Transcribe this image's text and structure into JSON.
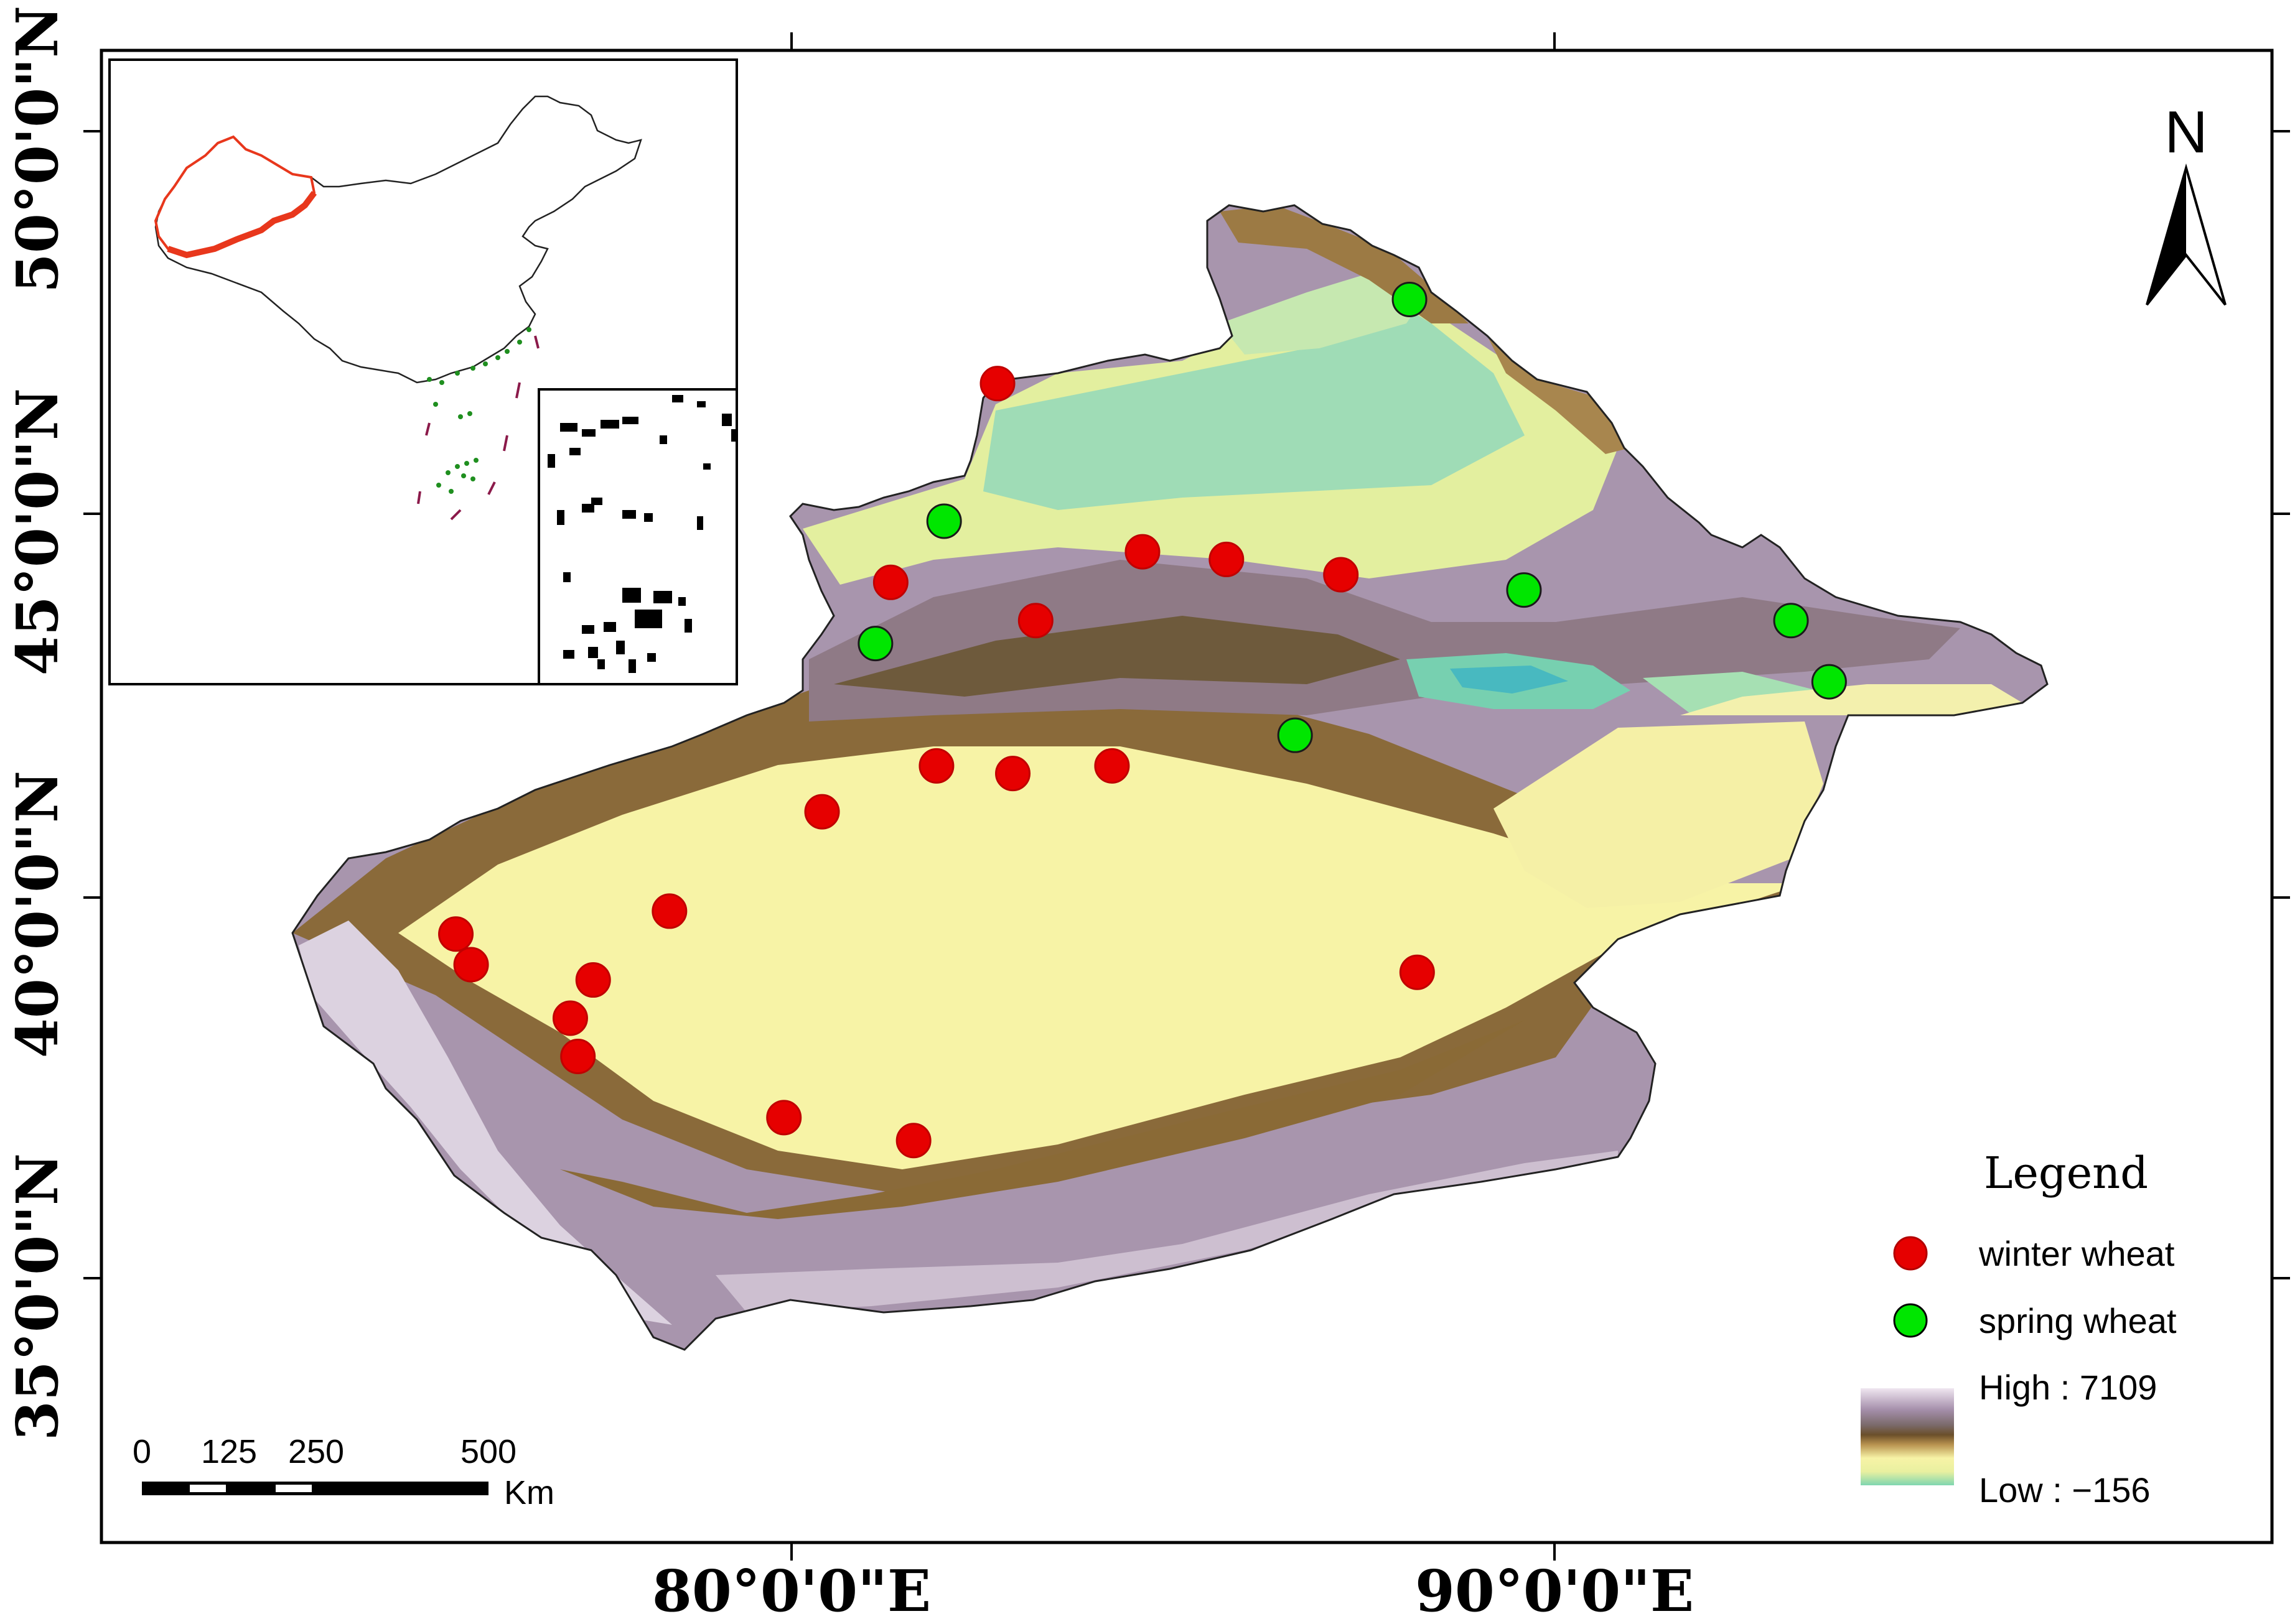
{
  "map": {
    "lat_labels": [
      "50°0'0\"N",
      "45°0'0\"N",
      "40°0'0\"N",
      "35°0'0\"N"
    ],
    "lon_labels": [
      "80°0'0\"E",
      "90°0'0\"E"
    ],
    "north_label": "N",
    "legend": {
      "title": "Legend",
      "items": [
        {
          "label": "winter wheat",
          "color": "#e60000"
        },
        {
          "label": "spring wheat",
          "color": "#00e600"
        }
      ],
      "high_label": "High : 7109",
      "low_label": "Low : −156"
    },
    "scale_bar": {
      "ticks": [
        "0",
        "125",
        "250",
        "500"
      ],
      "unit": "Km"
    },
    "colors": {
      "basin": "#f7f3a6",
      "lowland": "#7fd6b0",
      "foothill": "#b8924f",
      "mountain": "#a58fab",
      "boundary_red": "#e8371c",
      "island_green": "#1f8f1f"
    },
    "stations": {
      "winter_wheat": [
        {
          "lon": 82.7,
          "lat": 46.7
        },
        {
          "lon": 84.6,
          "lat": 44.5
        },
        {
          "lon": 85.7,
          "lat": 44.4
        },
        {
          "lon": 87.2,
          "lat": 44.2
        },
        {
          "lon": 81.3,
          "lat": 44.1
        },
        {
          "lon": 83.2,
          "lat": 43.6
        },
        {
          "lon": 81.9,
          "lat": 41.7
        },
        {
          "lon": 82.9,
          "lat": 41.6
        },
        {
          "lon": 84.2,
          "lat": 41.7
        },
        {
          "lon": 80.4,
          "lat": 41.1
        },
        {
          "lon": 78.4,
          "lat": 39.8
        },
        {
          "lon": 75.6,
          "lat": 39.5
        },
        {
          "lon": 75.8,
          "lat": 39.1
        },
        {
          "lon": 77.4,
          "lat": 38.9
        },
        {
          "lon": 77.1,
          "lat": 38.4
        },
        {
          "lon": 77.2,
          "lat": 37.9
        },
        {
          "lon": 79.9,
          "lat": 37.1
        },
        {
          "lon": 81.6,
          "lat": 36.8
        },
        {
          "lon": 88.2,
          "lat": 39.0
        }
      ],
      "spring_wheat": [
        {
          "lon": 88.1,
          "lat": 47.8
        },
        {
          "lon": 82.0,
          "lat": 44.9
        },
        {
          "lon": 81.1,
          "lat": 43.3
        },
        {
          "lon": 89.6,
          "lat": 44.0
        },
        {
          "lon": 93.1,
          "lat": 43.6
        },
        {
          "lon": 93.6,
          "lat": 42.8
        },
        {
          "lon": 86.6,
          "lat": 42.1
        }
      ]
    }
  }
}
